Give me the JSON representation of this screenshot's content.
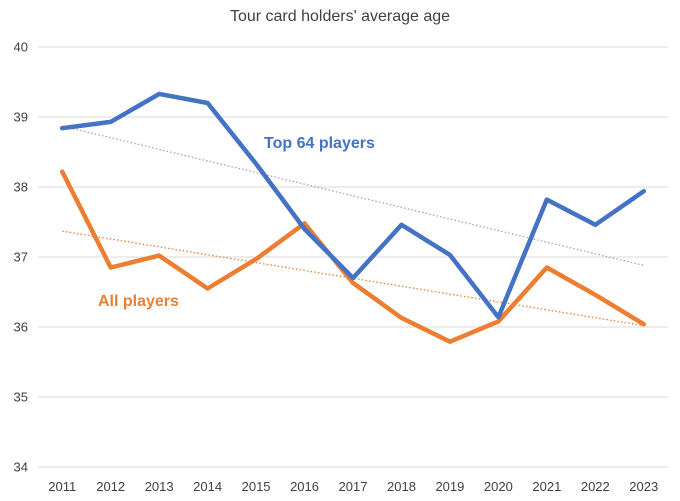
{
  "chart_data": {
    "type": "line",
    "title": "Tour card holders' average age",
    "xlabel": "",
    "ylabel": "",
    "categories": [
      "2011",
      "2012",
      "2013",
      "2014",
      "2015",
      "2016",
      "2017",
      "2018",
      "2019",
      "2020",
      "2021",
      "2022",
      "2023"
    ],
    "ylim": [
      34,
      40
    ],
    "yticks": [
      34,
      35,
      36,
      37,
      38,
      39,
      40
    ],
    "gridlines": "horizontal",
    "series": [
      {
        "name": "Top 64 players",
        "color": "#4472C4",
        "values": [
          38.84,
          38.93,
          39.33,
          39.2,
          38.33,
          37.4,
          36.7,
          37.46,
          37.03,
          36.14,
          37.82,
          37.46,
          37.94
        ],
        "trendline": {
          "start": 38.87,
          "end": 36.88,
          "color": "#A6A6A6"
        }
      },
      {
        "name": "All players",
        "color": "#ED7D31",
        "values": [
          38.22,
          36.85,
          37.02,
          36.55,
          36.97,
          37.48,
          36.63,
          36.13,
          35.79,
          36.08,
          36.85,
          36.46,
          36.04
        ],
        "trendline": {
          "start": 37.37,
          "end": 36.02,
          "color": "#ED7D31"
        }
      }
    ]
  }
}
